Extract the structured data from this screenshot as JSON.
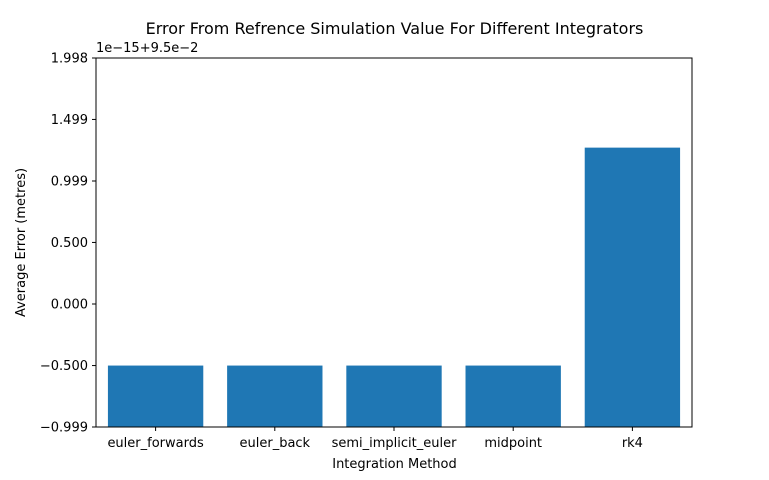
{
  "chart_data": {
    "type": "bar",
    "title": "Error From Refrence Simulation Value For Different Integrators",
    "xlabel": "Integration Method",
    "ylabel": "Average Error (metres)",
    "offset_label": "1e−15+9.5e−2",
    "categories": [
      "euler_forwards",
      "euler_back",
      "semi_implicit_euler",
      "midpoint",
      "rk4"
    ],
    "values": [
      -0.5,
      -0.5,
      -0.5,
      -0.5,
      1.27
    ],
    "ylim": [
      -0.999,
      1.998
    ],
    "yticks": [
      -0.999,
      -0.5,
      0.0,
      0.5,
      0.999,
      1.499,
      1.998
    ],
    "ytick_labels": [
      "−0.999",
      "−0.500",
      "0.000",
      "0.500",
      "0.999",
      "1.499",
      "1.998"
    ],
    "bar_color": "#1f77b4",
    "grid": false,
    "legend": "none"
  }
}
